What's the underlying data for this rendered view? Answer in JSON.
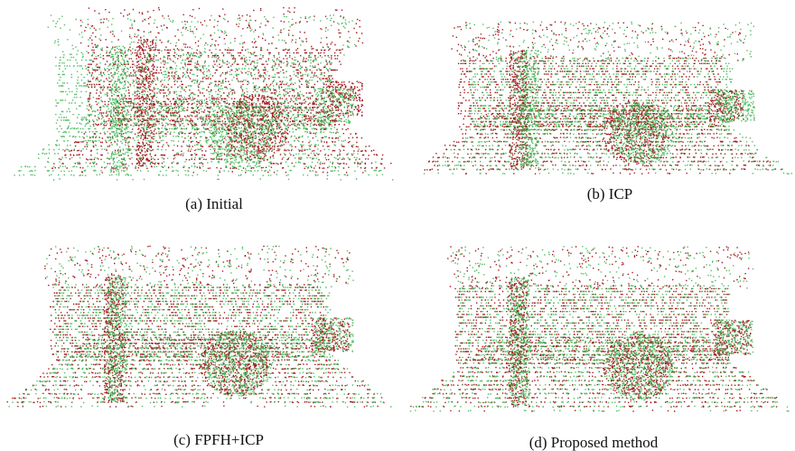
{
  "panels": [
    {
      "caption": "(a) Initial"
    },
    {
      "caption": "(b) ICP"
    },
    {
      "caption": "(c) FPFH+ICP"
    },
    {
      "caption": "(d) Proposed method"
    }
  ]
}
